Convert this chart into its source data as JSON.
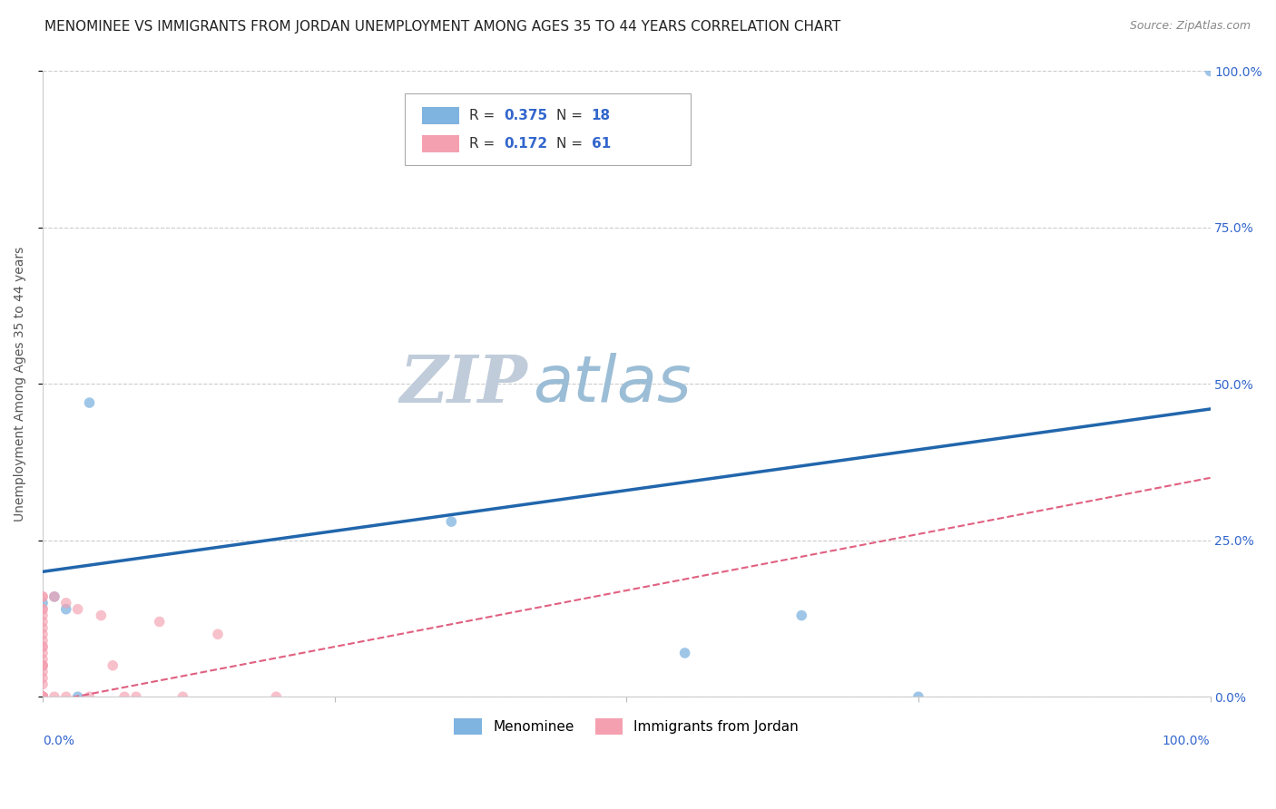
{
  "title": "MENOMINEE VS IMMIGRANTS FROM JORDAN UNEMPLOYMENT AMONG AGES 35 TO 44 YEARS CORRELATION CHART",
  "source_text": "Source: ZipAtlas.com",
  "ylabel": "Unemployment Among Ages 35 to 44 years",
  "xlim": [
    0.0,
    1.0
  ],
  "ylim": [
    0.0,
    1.0
  ],
  "xticks": [
    0.0,
    0.25,
    0.5,
    0.75,
    1.0
  ],
  "yticks": [
    0.0,
    0.25,
    0.5,
    0.75,
    1.0
  ],
  "yticklabels_right": [
    "0.0%",
    "25.0%",
    "50.0%",
    "75.0%",
    "100.0%"
  ],
  "watermark_zip": "ZIP",
  "watermark_atlas": "atlas",
  "watermark_zip_color": "#c0ccda",
  "watermark_atlas_color": "#9bbdd6",
  "background_color": "#ffffff",
  "menominee": {
    "name": "Menominee",
    "R": "0.375",
    "N": "18",
    "color": "#7fb3e0",
    "line_color": "#2166ac",
    "line_style": "solid",
    "line_width": 2.5,
    "x": [
      0.0,
      0.0,
      0.0,
      0.0,
      0.0,
      0.01,
      0.02,
      0.03,
      0.04,
      0.35,
      0.55,
      0.65,
      0.75,
      1.0
    ],
    "y": [
      0.0,
      0.0,
      0.0,
      0.0,
      0.15,
      0.16,
      0.14,
      0.0,
      0.47,
      0.28,
      0.07,
      0.13,
      0.0,
      1.0
    ],
    "trend_x0": 0.0,
    "trend_y0": 0.2,
    "trend_x1": 1.0,
    "trend_y1": 0.46
  },
  "jordan": {
    "name": "Immigrants from Jordan",
    "R": "0.172",
    "N": "61",
    "color": "#f4a0b0",
    "line_color": "#e06080",
    "line_style": "dashed",
    "line_width": 1.5,
    "x": [
      0.0,
      0.0,
      0.0,
      0.0,
      0.0,
      0.0,
      0.0,
      0.0,
      0.0,
      0.0,
      0.0,
      0.0,
      0.0,
      0.0,
      0.0,
      0.0,
      0.0,
      0.0,
      0.0,
      0.0,
      0.0,
      0.0,
      0.0,
      0.0,
      0.0,
      0.0,
      0.0,
      0.0,
      0.0,
      0.0,
      0.0,
      0.0,
      0.0,
      0.0,
      0.01,
      0.01,
      0.02,
      0.02,
      0.03,
      0.04,
      0.05,
      0.06,
      0.07,
      0.08,
      0.1,
      0.12,
      0.15,
      0.2
    ],
    "y": [
      0.0,
      0.0,
      0.0,
      0.0,
      0.0,
      0.0,
      0.0,
      0.0,
      0.0,
      0.0,
      0.0,
      0.0,
      0.0,
      0.0,
      0.0,
      0.02,
      0.03,
      0.04,
      0.05,
      0.06,
      0.07,
      0.08,
      0.09,
      0.1,
      0.11,
      0.12,
      0.13,
      0.14,
      0.05,
      0.16,
      0.16,
      0.08,
      0.05,
      0.14,
      0.0,
      0.16,
      0.0,
      0.15,
      0.14,
      0.0,
      0.13,
      0.05,
      0.0,
      0.0,
      0.12,
      0.0,
      0.1,
      0.0
    ],
    "trend_x0": 0.0,
    "trend_y0": -0.01,
    "trend_x1": 1.0,
    "trend_y1": 0.35
  },
  "title_fontsize": 11,
  "axis_label_fontsize": 10,
  "tick_fontsize": 10,
  "marker_size": 70,
  "grid_color": "#cccccc"
}
